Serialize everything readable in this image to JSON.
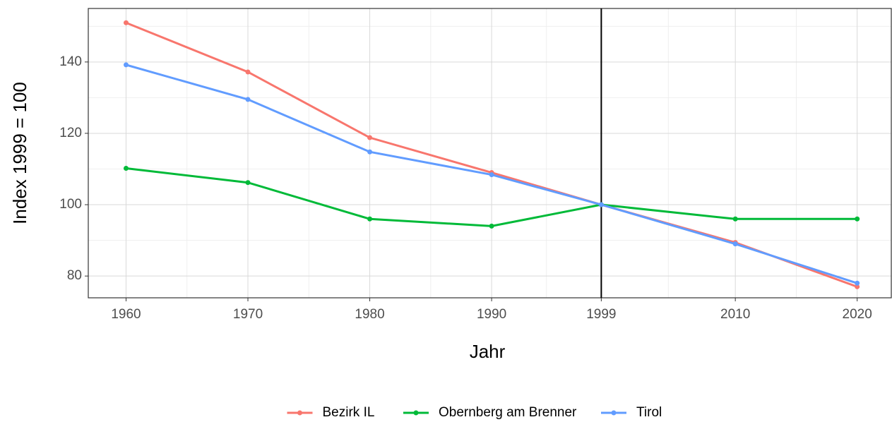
{
  "chart_data": {
    "type": "line",
    "x_label": "Jahr",
    "y_label": "Index 1999 = 100",
    "x": [
      1960,
      1970,
      1980,
      1990,
      1999,
      2010,
      2020
    ],
    "series": [
      {
        "name": "Bezirk IL",
        "color": "#F8766D",
        "values": [
          151,
          137.2,
          118.8,
          109,
          100,
          89.4,
          77
        ]
      },
      {
        "name": "Obernberg am Brenner",
        "color": "#00BA38",
        "values": [
          110.2,
          106.2,
          96,
          94,
          100,
          96,
          96
        ]
      },
      {
        "name": "Tirol",
        "color": "#619CFF",
        "values": [
          139.2,
          129.5,
          114.8,
          108.4,
          100,
          89,
          78
        ]
      }
    ],
    "xlim": [
      1956.9,
      2022.8
    ],
    "xticks": [
      1960,
      1970,
      1980,
      1990,
      1999,
      2010,
      2020
    ],
    "ylim": [
      73.9,
      155
    ],
    "yticks": [
      80,
      100,
      120,
      140
    ],
    "vline": 1999,
    "grid": true,
    "legend": "bottom"
  }
}
